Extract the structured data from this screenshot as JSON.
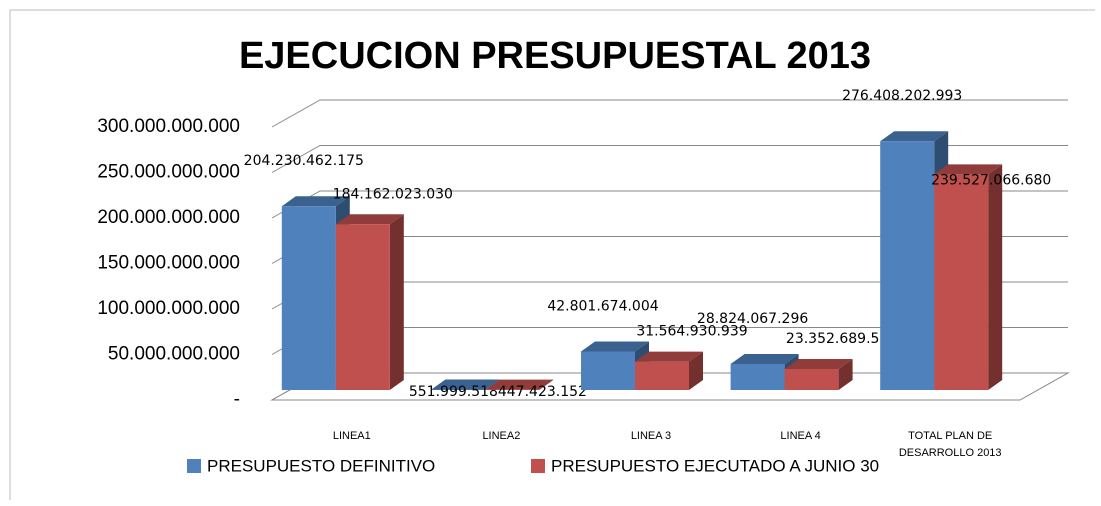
{
  "chart_data": {
    "type": "bar3d",
    "title": "EJECUCION PRESUPUESTAL 2013",
    "categories": [
      "LINEA1",
      "LINEA2",
      "LINEA 3",
      "LINEA 4",
      "TOTAL PLAN DE DESARROLLO 2013"
    ],
    "series": [
      {
        "name": "PRESUPUESTO DEFINITIVO",
        "color": "#4f81bd",
        "values": [
          204230462175,
          551999518,
          42801674004,
          28824067296,
          276408202993
        ],
        "value_labels": [
          "204.230.462.175",
          "551.999.518",
          "42.801.674.004",
          "28.824.067.296",
          "276.408.202.993"
        ]
      },
      {
        "name": "PRESUPUESTO EJECUTADO A JUNIO 30",
        "color": "#c0504d",
        "values": [
          184162023030,
          447423152,
          31564930939,
          23352689559,
          239527066680
        ],
        "value_labels": [
          "184.162.023.030",
          "447.423.152",
          "31.564.930.939",
          "23.352.689.559",
          "239.527.066.680"
        ]
      }
    ],
    "ylim": [
      0,
      300000000000
    ],
    "yticks": [
      {
        "value": 0,
        "label": "-"
      },
      {
        "value": 50000000000,
        "label": "50.000.000.000"
      },
      {
        "value": 100000000000,
        "label": "100.000.000.000"
      },
      {
        "value": 150000000000,
        "label": "150.000.000.000"
      },
      {
        "value": 200000000000,
        "label": "200.000.000.000"
      },
      {
        "value": 250000000000,
        "label": "250.000.000.000"
      },
      {
        "value": 300000000000,
        "label": "300.000.000.000"
      }
    ],
    "grid": true,
    "legend": "bottom"
  }
}
